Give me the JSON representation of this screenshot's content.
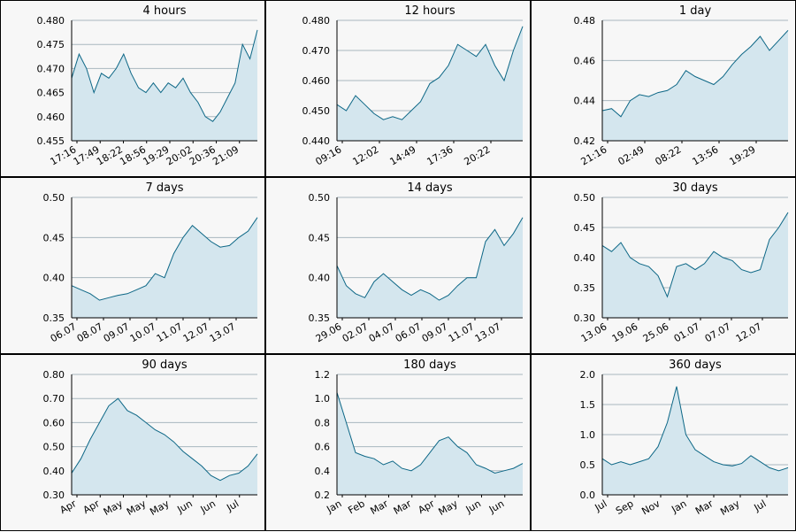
{
  "colors": {
    "line": "#0d6786",
    "fill": "#d4e6ee",
    "panel_bg": "#f7f7f7",
    "grid": "#a9b7bf"
  },
  "chart_data": [
    {
      "type": "area",
      "title": "4 hours",
      "ylim": [
        0.455,
        0.48
      ],
      "yticks": [
        0.455,
        0.46,
        0.465,
        0.47,
        0.475,
        0.48
      ],
      "ytick_labels": [
        "0.455",
        "0.460",
        "0.465",
        "0.470",
        "0.475",
        "0.480"
      ],
      "xtick_labels": [
        "17:16",
        "17:49",
        "18:22",
        "18:56",
        "19:29",
        "20:02",
        "20:36",
        "21:09"
      ],
      "x": [
        0,
        0.04,
        0.08,
        0.12,
        0.16,
        0.2,
        0.24,
        0.28,
        0.32,
        0.36,
        0.4,
        0.44,
        0.48,
        0.52,
        0.56,
        0.6,
        0.64,
        0.68,
        0.72,
        0.76,
        0.8,
        0.84,
        0.88,
        0.92,
        0.96,
        1
      ],
      "values": [
        0.468,
        0.473,
        0.47,
        0.465,
        0.469,
        0.468,
        0.47,
        0.473,
        0.469,
        0.466,
        0.465,
        0.467,
        0.465,
        0.467,
        0.466,
        0.468,
        0.465,
        0.463,
        0.46,
        0.459,
        0.461,
        0.464,
        0.467,
        0.475,
        0.472,
        0.478
      ]
    },
    {
      "type": "area",
      "title": "12 hours",
      "ylim": [
        0.44,
        0.48
      ],
      "yticks": [
        0.44,
        0.45,
        0.46,
        0.47,
        0.48
      ],
      "ytick_labels": [
        "0.440",
        "0.450",
        "0.460",
        "0.470",
        "0.480"
      ],
      "xtick_labels": [
        "09:16",
        "12:02",
        "14:49",
        "17:36",
        "20:22"
      ],
      "x": [
        0,
        0.05,
        0.1,
        0.15,
        0.2,
        0.25,
        0.3,
        0.35,
        0.4,
        0.45,
        0.5,
        0.55,
        0.6,
        0.65,
        0.7,
        0.75,
        0.8,
        0.85,
        0.9,
        0.95,
        1
      ],
      "values": [
        0.452,
        0.45,
        0.455,
        0.452,
        0.449,
        0.447,
        0.448,
        0.447,
        0.45,
        0.453,
        0.459,
        0.461,
        0.465,
        0.472,
        0.47,
        0.468,
        0.472,
        0.465,
        0.46,
        0.47,
        0.478
      ]
    },
    {
      "type": "area",
      "title": "1 day",
      "ylim": [
        0.42,
        0.48
      ],
      "yticks": [
        0.42,
        0.44,
        0.46,
        0.48
      ],
      "ytick_labels": [
        "0.42",
        "0.44",
        "0.46",
        "0.48"
      ],
      "xtick_labels": [
        "21:16",
        "02:49",
        "08:22",
        "13:56",
        "19:29"
      ],
      "x": [
        0,
        0.05,
        0.1,
        0.15,
        0.2,
        0.25,
        0.3,
        0.35,
        0.4,
        0.45,
        0.5,
        0.55,
        0.6,
        0.65,
        0.7,
        0.75,
        0.8,
        0.85,
        0.9,
        0.95,
        1
      ],
      "values": [
        0.435,
        0.436,
        0.432,
        0.44,
        0.443,
        0.442,
        0.444,
        0.445,
        0.448,
        0.455,
        0.452,
        0.45,
        0.448,
        0.452,
        0.458,
        0.463,
        0.467,
        0.472,
        0.465,
        0.47,
        0.475
      ]
    },
    {
      "type": "area",
      "title": "7 days",
      "ylim": [
        0.35,
        0.5
      ],
      "yticks": [
        0.35,
        0.4,
        0.45,
        0.5
      ],
      "ytick_labels": [
        "0.35",
        "0.40",
        "0.45",
        "0.50"
      ],
      "xtick_labels": [
        "06.07",
        "08.07",
        "09.07",
        "10.07",
        "11.07",
        "12.07",
        "13.07"
      ],
      "x": [
        0,
        0.05,
        0.1,
        0.15,
        0.2,
        0.25,
        0.3,
        0.35,
        0.4,
        0.45,
        0.5,
        0.55,
        0.6,
        0.65,
        0.7,
        0.75,
        0.8,
        0.85,
        0.9,
        0.95,
        1
      ],
      "values": [
        0.39,
        0.385,
        0.38,
        0.372,
        0.375,
        0.378,
        0.38,
        0.385,
        0.39,
        0.405,
        0.4,
        0.43,
        0.45,
        0.465,
        0.455,
        0.445,
        0.438,
        0.44,
        0.45,
        0.458,
        0.475
      ]
    },
    {
      "type": "area",
      "title": "14 days",
      "ylim": [
        0.35,
        0.5
      ],
      "yticks": [
        0.35,
        0.4,
        0.45,
        0.5
      ],
      "ytick_labels": [
        "0.35",
        "0.40",
        "0.45",
        "0.50"
      ],
      "xtick_labels": [
        "29.06",
        "02.07",
        "04.07",
        "06.07",
        "09.07",
        "11.07",
        "13.07"
      ],
      "x": [
        0,
        0.05,
        0.1,
        0.15,
        0.2,
        0.25,
        0.3,
        0.35,
        0.4,
        0.45,
        0.5,
        0.55,
        0.6,
        0.65,
        0.7,
        0.75,
        0.8,
        0.85,
        0.9,
        0.95,
        1
      ],
      "values": [
        0.415,
        0.39,
        0.38,
        0.375,
        0.395,
        0.405,
        0.395,
        0.385,
        0.378,
        0.385,
        0.38,
        0.372,
        0.378,
        0.39,
        0.4,
        0.4,
        0.445,
        0.46,
        0.44,
        0.455,
        0.475
      ]
    },
    {
      "type": "area",
      "title": "30 days",
      "ylim": [
        0.3,
        0.5
      ],
      "yticks": [
        0.3,
        0.35,
        0.4,
        0.45,
        0.5
      ],
      "ytick_labels": [
        "0.30",
        "0.35",
        "0.40",
        "0.45",
        "0.50"
      ],
      "xtick_labels": [
        "13.06",
        "19.06",
        "25.06",
        "01.07",
        "07.07",
        "12.07"
      ],
      "x": [
        0,
        0.05,
        0.1,
        0.15,
        0.2,
        0.25,
        0.3,
        0.35,
        0.4,
        0.45,
        0.5,
        0.55,
        0.6,
        0.65,
        0.7,
        0.75,
        0.8,
        0.85,
        0.9,
        0.95,
        1
      ],
      "values": [
        0.42,
        0.41,
        0.425,
        0.4,
        0.39,
        0.385,
        0.37,
        0.335,
        0.385,
        0.39,
        0.38,
        0.39,
        0.41,
        0.4,
        0.395,
        0.38,
        0.375,
        0.38,
        0.43,
        0.45,
        0.475
      ]
    },
    {
      "type": "area",
      "title": "90 days",
      "ylim": [
        0.3,
        0.8
      ],
      "yticks": [
        0.3,
        0.4,
        0.5,
        0.6,
        0.7,
        0.8
      ],
      "ytick_labels": [
        "0.30",
        "0.40",
        "0.50",
        "0.60",
        "0.70",
        "0.80"
      ],
      "xtick_labels": [
        "Apr",
        "Apr",
        "May",
        "May",
        "May",
        "Jun",
        "Jun",
        "Jul"
      ],
      "x": [
        0,
        0.05,
        0.1,
        0.15,
        0.2,
        0.25,
        0.3,
        0.35,
        0.4,
        0.45,
        0.5,
        0.55,
        0.6,
        0.65,
        0.7,
        0.75,
        0.8,
        0.85,
        0.9,
        0.95,
        1
      ],
      "values": [
        0.39,
        0.45,
        0.53,
        0.6,
        0.67,
        0.7,
        0.65,
        0.63,
        0.6,
        0.57,
        0.55,
        0.52,
        0.48,
        0.45,
        0.42,
        0.38,
        0.36,
        0.38,
        0.39,
        0.42,
        0.47
      ]
    },
    {
      "type": "area",
      "title": "180 days",
      "ylim": [
        0.2,
        1.2
      ],
      "yticks": [
        0.2,
        0.4,
        0.6,
        0.8,
        1.0,
        1.2
      ],
      "ytick_labels": [
        "0.2",
        "0.4",
        "0.6",
        "0.8",
        "1.0",
        "1.2"
      ],
      "xtick_labels": [
        "Jan",
        "Feb",
        "Mar",
        "Mar",
        "Apr",
        "May",
        "Jun",
        "Jun"
      ],
      "x": [
        0,
        0.05,
        0.1,
        0.15,
        0.2,
        0.25,
        0.3,
        0.35,
        0.4,
        0.45,
        0.5,
        0.55,
        0.6,
        0.65,
        0.7,
        0.75,
        0.8,
        0.85,
        0.9,
        0.95,
        1
      ],
      "values": [
        1.05,
        0.8,
        0.55,
        0.52,
        0.5,
        0.45,
        0.48,
        0.42,
        0.4,
        0.45,
        0.55,
        0.65,
        0.68,
        0.6,
        0.55,
        0.45,
        0.42,
        0.38,
        0.4,
        0.42,
        0.46
      ]
    },
    {
      "type": "area",
      "title": "360 days",
      "ylim": [
        0,
        2.0
      ],
      "yticks": [
        0,
        0.5,
        1.0,
        1.5,
        2.0
      ],
      "ytick_labels": [
        "0.0",
        "0.5",
        "1.0",
        "1.5",
        "2.0"
      ],
      "xtick_labels": [
        "Jul",
        "Sep",
        "Nov",
        "Jan",
        "Mar",
        "May",
        "Jul"
      ],
      "x": [
        0,
        0.05,
        0.1,
        0.15,
        0.2,
        0.25,
        0.3,
        0.35,
        0.4,
        0.45,
        0.5,
        0.55,
        0.6,
        0.65,
        0.7,
        0.75,
        0.8,
        0.85,
        0.9,
        0.95,
        1
      ],
      "values": [
        0.6,
        0.5,
        0.55,
        0.5,
        0.55,
        0.6,
        0.8,
        1.2,
        1.8,
        1.0,
        0.75,
        0.65,
        0.55,
        0.5,
        0.48,
        0.52,
        0.65,
        0.55,
        0.45,
        0.4,
        0.45
      ]
    }
  ]
}
